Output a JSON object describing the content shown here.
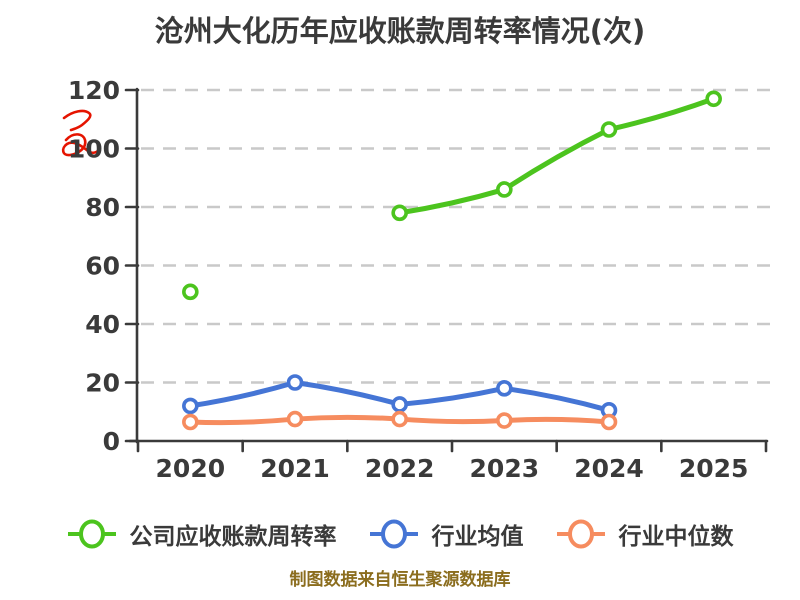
{
  "title": "沧州大化历年应收账款周转率情况(次)",
  "footer_credit": "制图数据来自恒生聚源数据库",
  "colors": {
    "text": "#3a3a3a",
    "axis": "#3a3a3a",
    "grid": "#c9c9c9",
    "background": "#ffffff",
    "company_series": "#4cc41e",
    "industry_mean_series": "#4575d5",
    "industry_median_series": "#f68c5f",
    "scribble_red": "#e51400",
    "footer_gold": "#8b6d1e"
  },
  "legend": {
    "items": [
      {
        "label": "公司应收账款周转率",
        "color": "#4cc41e"
      },
      {
        "label": "行业均值",
        "color": "#4575d5"
      },
      {
        "label": "行业中位数",
        "color": "#f68c5f"
      }
    ]
  },
  "chart_data": {
    "type": "line",
    "title": "沧州大化历年应收账款周转率情况(次)",
    "categories": [
      "2020",
      "2021",
      "2022",
      "2023",
      "2024",
      "2025"
    ],
    "series": [
      {
        "name": "公司应收账款周转率",
        "color": "#4cc41e",
        "values": [
          51,
          null,
          78,
          86,
          106.5,
          117
        ]
      },
      {
        "name": "行业均值",
        "color": "#4575d5",
        "values": [
          12,
          20,
          12.5,
          18,
          10.5,
          null
        ]
      },
      {
        "name": "行业中位数",
        "color": "#f68c5f",
        "values": [
          6.5,
          7.5,
          7.5,
          7,
          6.5,
          null
        ]
      }
    ],
    "xlabel": "",
    "ylabel": "",
    "ylim": [
      0,
      120
    ],
    "yticks": [
      0,
      20,
      40,
      60,
      80,
      100,
      120
    ],
    "grid": "horizontal-dashed",
    "legend_position": "bottom",
    "style": "xkcd-handdrawn",
    "marker": "circle-white-fill"
  }
}
